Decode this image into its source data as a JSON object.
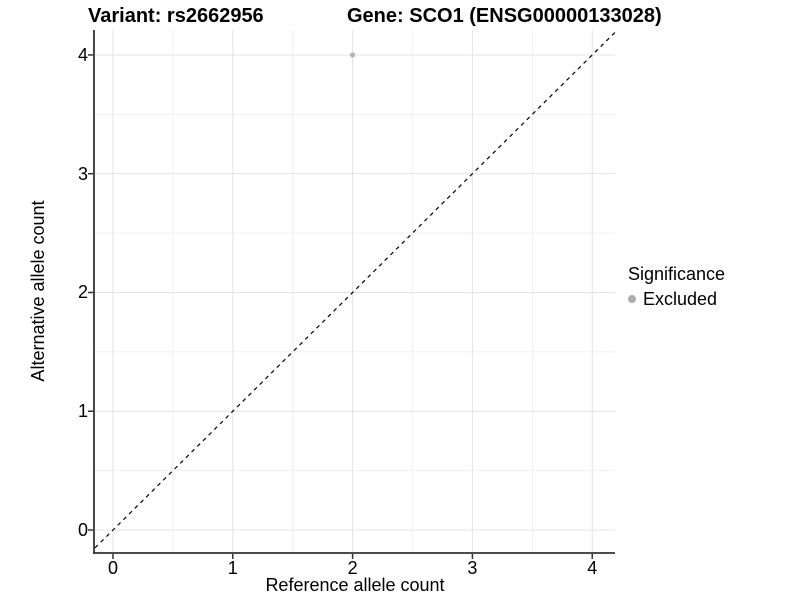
{
  "chart_data": {
    "type": "scatter",
    "title_left": "Variant: rs2662956",
    "title_right": "Gene: SCO1 (ENSG00000133028)",
    "xlabel": "Reference allele count",
    "ylabel": "Alternative allele count",
    "xlim": [
      -0.15,
      4.19
    ],
    "ylim": [
      -0.185,
      4.21
    ],
    "x_ticks": [
      0,
      1,
      2,
      3,
      4
    ],
    "y_ticks": [
      0,
      1,
      2,
      3,
      4
    ],
    "grid": true,
    "minor_step": 0.5,
    "series": [
      {
        "name": "Excluded",
        "color": "#b4b4b4",
        "marker_radius": 2.6,
        "points": [
          [
            2,
            4
          ]
        ]
      }
    ],
    "reference_line": {
      "slope": 1,
      "intercept": 0,
      "style": "dashed",
      "color": "#000000"
    },
    "legend": {
      "title": "Significance",
      "position": "right",
      "items": [
        {
          "label": "Excluded",
          "color": "#adadad",
          "marker": "circle"
        }
      ]
    },
    "colors": {
      "background": "#ffffff",
      "grid_major": "#e3e3e3",
      "grid_minor": "#f0f0f0",
      "axis_line": "#333333",
      "text": "#000000"
    }
  }
}
